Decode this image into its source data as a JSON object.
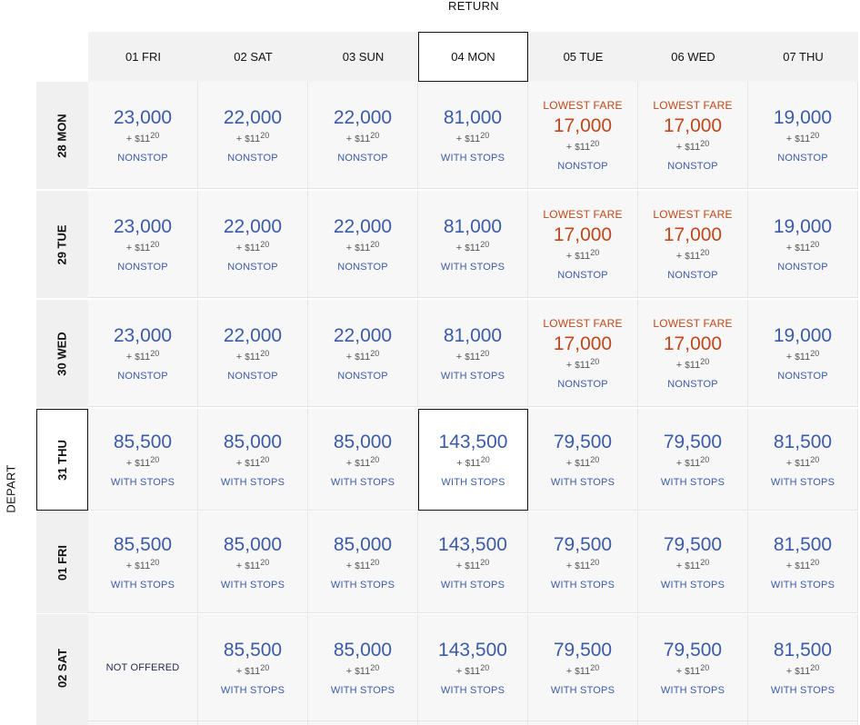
{
  "header": {
    "return_label": "RETURN",
    "depart_label": "DEPART"
  },
  "columns": [
    {
      "label": "01 FRI",
      "selected": false
    },
    {
      "label": "02 SAT",
      "selected": false
    },
    {
      "label": "03 SUN",
      "selected": false
    },
    {
      "label": "04 MON",
      "selected": true
    },
    {
      "label": "05 TUE",
      "selected": false
    },
    {
      "label": "06 WED",
      "selected": false
    },
    {
      "label": "07 THU",
      "selected": false
    }
  ],
  "rows": [
    {
      "label": "28 MON",
      "selected": false,
      "cells": [
        {
          "miles": "23,000",
          "tax": "11",
          "cents": "20",
          "stops": "NONSTOP"
        },
        {
          "miles": "22,000",
          "tax": "11",
          "cents": "20",
          "stops": "NONSTOP"
        },
        {
          "miles": "22,000",
          "tax": "11",
          "cents": "20",
          "stops": "NONSTOP"
        },
        {
          "miles": "81,000",
          "tax": "11",
          "cents": "20",
          "stops": "WITH STOPS"
        },
        {
          "lowest": "LOWEST FARE",
          "miles": "17,000",
          "tax": "11",
          "cents": "20",
          "stops": "NONSTOP"
        },
        {
          "lowest": "LOWEST FARE",
          "miles": "17,000",
          "tax": "11",
          "cents": "20",
          "stops": "NONSTOP"
        },
        {
          "miles": "19,000",
          "tax": "11",
          "cents": "20",
          "stops": "NONSTOP"
        }
      ]
    },
    {
      "label": "29 TUE",
      "selected": false,
      "cells": [
        {
          "miles": "23,000",
          "tax": "11",
          "cents": "20",
          "stops": "NONSTOP"
        },
        {
          "miles": "22,000",
          "tax": "11",
          "cents": "20",
          "stops": "NONSTOP"
        },
        {
          "miles": "22,000",
          "tax": "11",
          "cents": "20",
          "stops": "NONSTOP"
        },
        {
          "miles": "81,000",
          "tax": "11",
          "cents": "20",
          "stops": "WITH STOPS"
        },
        {
          "lowest": "LOWEST FARE",
          "miles": "17,000",
          "tax": "11",
          "cents": "20",
          "stops": "NONSTOP"
        },
        {
          "lowest": "LOWEST FARE",
          "miles": "17,000",
          "tax": "11",
          "cents": "20",
          "stops": "NONSTOP"
        },
        {
          "miles": "19,000",
          "tax": "11",
          "cents": "20",
          "stops": "NONSTOP"
        }
      ]
    },
    {
      "label": "30 WED",
      "selected": false,
      "cells": [
        {
          "miles": "23,000",
          "tax": "11",
          "cents": "20",
          "stops": "NONSTOP"
        },
        {
          "miles": "22,000",
          "tax": "11",
          "cents": "20",
          "stops": "NONSTOP"
        },
        {
          "miles": "22,000",
          "tax": "11",
          "cents": "20",
          "stops": "NONSTOP"
        },
        {
          "miles": "81,000",
          "tax": "11",
          "cents": "20",
          "stops": "WITH STOPS"
        },
        {
          "lowest": "LOWEST FARE",
          "miles": "17,000",
          "tax": "11",
          "cents": "20",
          "stops": "NONSTOP"
        },
        {
          "lowest": "LOWEST FARE",
          "miles": "17,000",
          "tax": "11",
          "cents": "20",
          "stops": "NONSTOP"
        },
        {
          "miles": "19,000",
          "tax": "11",
          "cents": "20",
          "stops": "NONSTOP"
        }
      ]
    },
    {
      "label": "31 THU",
      "selected": true,
      "cells": [
        {
          "miles": "85,500",
          "tax": "11",
          "cents": "20",
          "stops": "WITH STOPS"
        },
        {
          "miles": "85,000",
          "tax": "11",
          "cents": "20",
          "stops": "WITH STOPS"
        },
        {
          "miles": "85,000",
          "tax": "11",
          "cents": "20",
          "stops": "WITH STOPS"
        },
        {
          "miles": "143,500",
          "tax": "11",
          "cents": "20",
          "stops": "WITH STOPS",
          "selected": true
        },
        {
          "miles": "79,500",
          "tax": "11",
          "cents": "20",
          "stops": "WITH STOPS"
        },
        {
          "miles": "79,500",
          "tax": "11",
          "cents": "20",
          "stops": "WITH STOPS"
        },
        {
          "miles": "81,500",
          "tax": "11",
          "cents": "20",
          "stops": "WITH STOPS"
        }
      ]
    },
    {
      "label": "01 FRI",
      "selected": false,
      "cells": [
        {
          "miles": "85,500",
          "tax": "11",
          "cents": "20",
          "stops": "WITH STOPS"
        },
        {
          "miles": "85,000",
          "tax": "11",
          "cents": "20",
          "stops": "WITH STOPS"
        },
        {
          "miles": "85,000",
          "tax": "11",
          "cents": "20",
          "stops": "WITH STOPS"
        },
        {
          "miles": "143,500",
          "tax": "11",
          "cents": "20",
          "stops": "WITH STOPS"
        },
        {
          "miles": "79,500",
          "tax": "11",
          "cents": "20",
          "stops": "WITH STOPS"
        },
        {
          "miles": "79,500",
          "tax": "11",
          "cents": "20",
          "stops": "WITH STOPS"
        },
        {
          "miles": "81,500",
          "tax": "11",
          "cents": "20",
          "stops": "WITH STOPS"
        }
      ]
    },
    {
      "label": "02 SAT",
      "selected": false,
      "cells": [
        {
          "not_offered": "NOT OFFERED"
        },
        {
          "miles": "85,500",
          "tax": "11",
          "cents": "20",
          "stops": "WITH STOPS"
        },
        {
          "miles": "85,000",
          "tax": "11",
          "cents": "20",
          "stops": "WITH STOPS"
        },
        {
          "miles": "143,500",
          "tax": "11",
          "cents": "20",
          "stops": "WITH STOPS"
        },
        {
          "miles": "79,500",
          "tax": "11",
          "cents": "20",
          "stops": "WITH STOPS"
        },
        {
          "miles": "79,500",
          "tax": "11",
          "cents": "20",
          "stops": "WITH STOPS"
        },
        {
          "miles": "81,500",
          "tax": "11",
          "cents": "20",
          "stops": "WITH STOPS"
        }
      ]
    }
  ],
  "colors": {
    "miles": "#3b5ba9",
    "lowest": "#c0471b",
    "header_bg": "#f2f2f2",
    "cell_bg": "#f7f7f7"
  }
}
